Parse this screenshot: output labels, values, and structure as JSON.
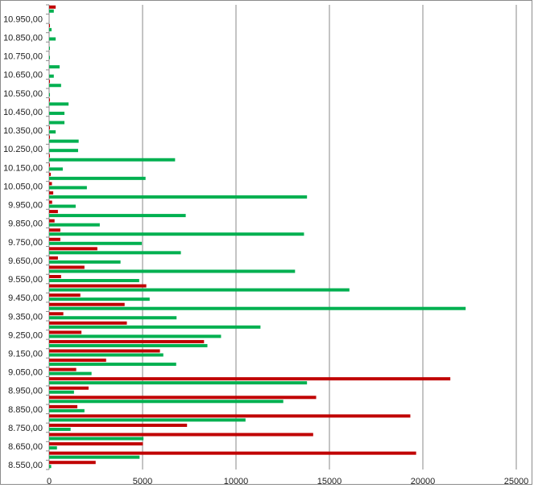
{
  "chart_data": {
    "type": "bar",
    "orientation": "horizontal",
    "title": "",
    "xlabel": "",
    "ylabel": "",
    "xlim": [
      0,
      25000
    ],
    "grid": "vertical",
    "legend": "none",
    "xtick_labels": [
      "0",
      "5000",
      "10000",
      "15000",
      "20000",
      "25000"
    ],
    "xticks": [
      0,
      5000,
      10000,
      15000,
      20000,
      25000
    ],
    "categories": [
      8550,
      8600,
      8650,
      8700,
      8750,
      8800,
      8850,
      8900,
      8950,
      9000,
      9050,
      9100,
      9150,
      9200,
      9250,
      9300,
      9350,
      9400,
      9450,
      9500,
      9550,
      9600,
      9650,
      9700,
      9750,
      9800,
      9850,
      9900,
      9950,
      10000,
      10050,
      10100,
      10150,
      10200,
      10250,
      10300,
      10350,
      10400,
      10450,
      10500,
      10550,
      10600,
      10650,
      10700,
      10750,
      10800,
      10850,
      10900,
      10950,
      11000
    ],
    "ytick_labels": [
      "8.550,00",
      "8.650,00",
      "8.750,00",
      "8.850,00",
      "8.950,00",
      "9.050,00",
      "9.150,00",
      "9.250,00",
      "9.350,00",
      "9.450,00",
      "9.550,00",
      "9.650,00",
      "9.750,00",
      "9.850,00",
      "9.950,00",
      "10.050,00",
      "10.150,00",
      "10.250,00",
      "10.350,00",
      "10.450,00",
      "10.550,00",
      "10.650,00",
      "10.750,00",
      "10.850,00",
      "10.950,00"
    ],
    "series": [
      {
        "name": "red",
        "color": "#C00000",
        "values": [
          2490,
          19640,
          5020,
          14130,
          7380,
          19330,
          1510,
          14290,
          2110,
          21470,
          1450,
          3050,
          5930,
          8290,
          1730,
          4160,
          760,
          4040,
          1670,
          5200,
          640,
          1890,
          470,
          2580,
          600,
          600,
          290,
          470,
          160,
          220,
          150,
          90,
          20,
          20,
          0,
          20,
          20,
          0,
          0,
          20,
          0,
          20,
          0,
          0,
          0,
          0,
          0,
          20,
          0,
          350
        ]
      },
      {
        "name": "green",
        "color": "#00B050",
        "values": [
          110,
          4840,
          420,
          5050,
          1150,
          10510,
          1890,
          12530,
          1330,
          13800,
          2270,
          6800,
          6110,
          8470,
          9200,
          11310,
          6820,
          22290,
          5380,
          16070,
          4820,
          13160,
          3820,
          7050,
          4960,
          13640,
          2710,
          7310,
          1420,
          13800,
          2020,
          5160,
          730,
          6740,
          1550,
          1580,
          350,
          820,
          820,
          1040,
          20,
          640,
          250,
          560,
          20,
          20,
          350,
          130,
          0,
          250
        ]
      }
    ]
  }
}
